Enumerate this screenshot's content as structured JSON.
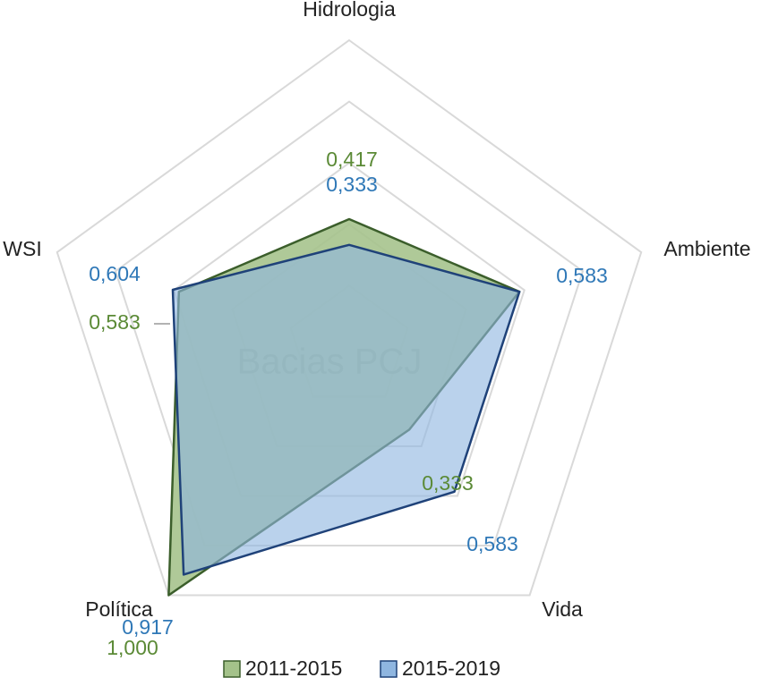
{
  "chart_data": {
    "type": "radar",
    "annotation": "Bacias PCJ",
    "categories": [
      "Hidrologia",
      "Ambiente",
      "Vida",
      "Política",
      "WSI"
    ],
    "series": [
      {
        "name": "2011-2015",
        "color": "#a4c28a",
        "stroke": "#3b5e2b",
        "label_color": "#5b8a36",
        "values": [
          0.417,
          0.583,
          0.333,
          1.0,
          0.583
        ],
        "value_labels": [
          "0,417",
          null,
          "0,333",
          "1,000",
          "0,583"
        ]
      },
      {
        "name": "2015-2019",
        "color": "#8fb6e0",
        "stroke": "#1f4279",
        "label_color": "#2f78b7",
        "values": [
          0.333,
          0.583,
          0.583,
          0.917,
          0.604
        ],
        "value_labels": [
          "0,333",
          "0,583",
          "0,583",
          "0,917",
          "0,604"
        ]
      }
    ],
    "ylim": [
      0,
      1
    ],
    "yticks": [
      0.2,
      0.4,
      0.6,
      0.8,
      1
    ],
    "grid": true,
    "legend": "bottom"
  }
}
